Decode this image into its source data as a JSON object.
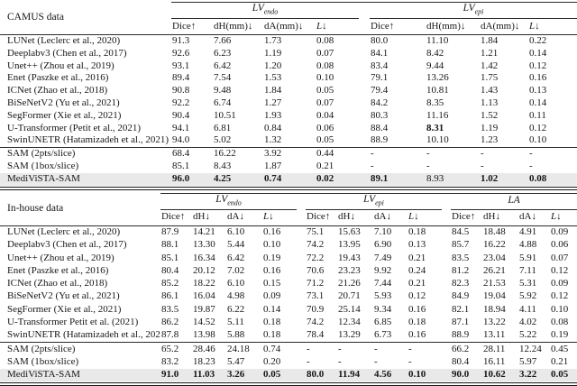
{
  "page": {
    "background_color": "#ffffff",
    "text_color": "#161616",
    "rule_color": "#2b2b2b",
    "highlight_color": "#e9e9e9"
  },
  "tables": [
    {
      "label": "CAMUS data",
      "groups": [
        {
          "main": "LV",
          "sub": "endo",
          "cols": [
            "Dice↑",
            "dH(mm)↓",
            "dA(mm)↓",
            "L↓"
          ]
        },
        {
          "main": "LV",
          "sub": "epi",
          "cols": [
            "Dice↑",
            "dH(mm)↓",
            "dA(mm)↓",
            "L↓"
          ]
        }
      ],
      "sections": [
        {
          "rows": [
            {
              "method": "LUNet (Leclerc et al., 2020)",
              "values": [
                "91.3",
                "7.66",
                "1.73",
                "0.08",
                "80.0",
                "11.10",
                "1.84",
                "0.22"
              ]
            },
            {
              "method": "Deeplabv3 (Chen et al., 2017)",
              "values": [
                "92.6",
                "6.23",
                "1.19",
                "0.07",
                "84.1",
                "8.42",
                "1.21",
                "0.14"
              ]
            },
            {
              "method": "Unet++ (Zhou et al., 2019)",
              "values": [
                "93.1",
                "6.42",
                "1.20",
                "0.08",
                "83.4",
                "9.44",
                "1.42",
                "0.12"
              ]
            },
            {
              "method": "Enet (Paszke et al., 2016)",
              "values": [
                "89.4",
                "7.54",
                "1.53",
                "0.10",
                "79.1",
                "13.26",
                "1.75",
                "0.16"
              ]
            },
            {
              "method": "ICNet (Zhao et al., 2018)",
              "values": [
                "90.8",
                "9.48",
                "1.84",
                "0.05",
                "79.4",
                "10.81",
                "1.43",
                "0.13"
              ]
            },
            {
              "method": "BiSeNetV2 (Yu et al., 2021)",
              "values": [
                "92.2",
                "6.74",
                "1.27",
                "0.07",
                "84.2",
                "8.35",
                "1.13",
                "0.14"
              ]
            },
            {
              "method": "SegFormer (Xie et al., 2021)",
              "values": [
                "90.4",
                "10.51",
                "1.93",
                "0.04",
                "80.3",
                "11.16",
                "1.52",
                "0.11"
              ]
            },
            {
              "method": "U-Transformer (Petit et al., 2021)",
              "values": [
                "94.1",
                "6.81",
                "0.84",
                "0.06",
                "88.4",
                "8.31",
                "1.19",
                "0.12"
              ],
              "bold": [
                5
              ]
            },
            {
              "method": "SwinUNETR (Hatamizadeh et al., 2021)",
              "values": [
                "94.0",
                "5.02",
                "1.32",
                "0.05",
                "88.9",
                "10.10",
                "1.23",
                "0.10"
              ]
            }
          ]
        },
        {
          "rows": [
            {
              "method": "SAM (2pts/slice)",
              "values": [
                "68.4",
                "16.22",
                "3.92",
                "0.44",
                "-",
                "-",
                "-",
                "-"
              ]
            },
            {
              "method": "SAM (1box/slice)",
              "values": [
                "85.1",
                "8.43",
                "1.87",
                "0.21",
                "-",
                "-",
                "-",
                "-"
              ]
            },
            {
              "method": "MediViSTA-SAM",
              "values": [
                "96.0",
                "4.25",
                "0.74",
                "0.02",
                "89.1",
                "8.93",
                "1.02",
                "0.08"
              ],
              "bold": [
                0,
                1,
                2,
                3,
                4,
                6,
                7
              ],
              "highlight": true
            }
          ]
        }
      ]
    },
    {
      "label": "In-house data",
      "groups": [
        {
          "main": "LV",
          "sub": "endo",
          "cols": [
            "Dice↑",
            "dH↓",
            "dA↓",
            "L↓"
          ]
        },
        {
          "main": "LV",
          "sub": "epi",
          "cols": [
            "Dice↑",
            "dH↓",
            "dA↓",
            "L↓"
          ]
        },
        {
          "main": "LA",
          "sub": "",
          "cols": [
            "Dice↑",
            "dH↓",
            "dA↓",
            "L↓"
          ]
        }
      ],
      "sections": [
        {
          "rows": [
            {
              "method": "LUNet (Leclerc et al., 2020)",
              "values": [
                "87.9",
                "14.21",
                "6.10",
                "0.16",
                "75.1",
                "15.63",
                "7.10",
                "0.18",
                "84.5",
                "18.48",
                "4.91",
                "0.09"
              ]
            },
            {
              "method": "Deeplabv3 (Chen et al., 2017)",
              "values": [
                "88.1",
                "13.30",
                "5.44",
                "0.10",
                "74.2",
                "13.95",
                "6.90",
                "0.13",
                "85.7",
                "16.22",
                "4.88",
                "0.06"
              ]
            },
            {
              "method": "Unet++ (Zhou et al., 2019)",
              "values": [
                "85.1",
                "16.34",
                "6.42",
                "0.19",
                "72.2",
                "19.43",
                "7.49",
                "0.21",
                "83.5",
                "23.04",
                "5.91",
                "0.07"
              ]
            },
            {
              "method": "Enet (Paszke et al., 2016)",
              "values": [
                "80.4",
                "20.12",
                "7.02",
                "0.16",
                "70.6",
                "23.23",
                "9.92",
                "0.24",
                "81.2",
                "26.21",
                "7.11",
                "0.12"
              ]
            },
            {
              "method": "ICNet (Zhao et al., 2018)",
              "values": [
                "85.2",
                "18.22",
                "6.10",
                "0.15",
                "71.2",
                "21.26",
                "7.44",
                "0.21",
                "82.3",
                "21.53",
                "5.31",
                "0.09"
              ]
            },
            {
              "method": "BiSeNetV2 (Yu et al., 2021)",
              "values": [
                "86.1",
                "16.04",
                "4.98",
                "0.09",
                "73.1",
                "20.71",
                "5.93",
                "0.12",
                "84.9",
                "19.04",
                "5.92",
                "0.12"
              ]
            },
            {
              "method": "SegFormer (Xie et al., 2021)",
              "values": [
                "83.5",
                "19.87",
                "6.22",
                "0.14",
                "70.9",
                "25.14",
                "9.34",
                "0.16",
                "82.1",
                "18.94",
                "4.11",
                "0.10"
              ]
            },
            {
              "method": "U-Transformer Petit et al. (2021)",
              "values": [
                "86.2",
                "14.52",
                "5.11",
                "0.18",
                "74.2",
                "12.34",
                "6.85",
                "0.18",
                "87.1",
                "13.22",
                "4.02",
                "0.08"
              ]
            },
            {
              "method": "SwinUNETR (Hatamizadeh et al., 2021)",
              "values": [
                "87.8",
                "13.98",
                "5.88",
                "0.18",
                "78.4",
                "13.29",
                "6.73",
                "0.16",
                "88.9",
                "13.11",
                "5.22",
                "0.19"
              ]
            }
          ]
        },
        {
          "rows": [
            {
              "method": "SAM (2pts/slice)",
              "values": [
                "65.2",
                "28.46",
                "24.18",
                "0.74",
                "-",
                "-",
                "-",
                "-",
                "66.2",
                "28.11",
                "12.24",
                "0.45"
              ]
            },
            {
              "method": "SAM (1box/slice)",
              "values": [
                "83.2",
                "18.23",
                "5.47",
                "0.20",
                "-",
                "-",
                "-",
                "-",
                "80.4",
                "16.11",
                "5.97",
                "0.21"
              ]
            },
            {
              "method": "MediViSTA-SAM",
              "values": [
                "91.0",
                "11.03",
                "3.26",
                "0.05",
                "80.0",
                "11.94",
                "4.56",
                "0.10",
                "90.0",
                "10.62",
                "3.22",
                "0.05"
              ],
              "bold": [
                0,
                1,
                2,
                3,
                4,
                5,
                6,
                7,
                8,
                9,
                10,
                11
              ],
              "highlight": true
            }
          ]
        }
      ]
    }
  ]
}
